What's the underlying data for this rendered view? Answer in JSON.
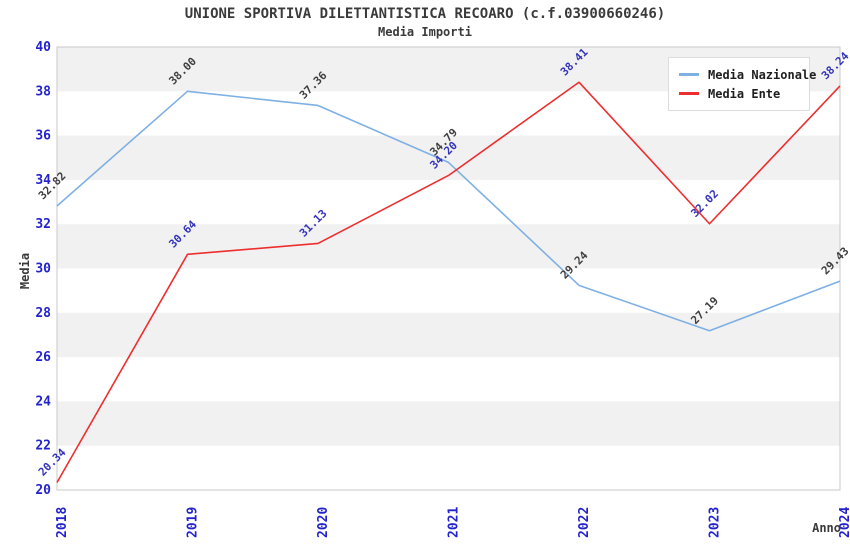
{
  "title": "UNIONE SPORTIVA DILETTANTISTICA RECOARO (c.f.03900660246)",
  "subtitle": "Media Importi",
  "chart_data": {
    "type": "line",
    "x": [
      2018,
      2019,
      2020,
      2021,
      2022,
      2023,
      2024
    ],
    "xlabel": "Anno",
    "ylabel": "Media",
    "ylim": [
      20,
      40
    ],
    "ytick_step": 2,
    "grid": "alternating-horizontal-bands",
    "legend_position": "top-right",
    "series": [
      {
        "name": "Media Nazionale",
        "color": "#7fb0e4",
        "label_color": "#3f3f3f",
        "values": [
          32.82,
          38.0,
          37.36,
          34.79,
          29.24,
          27.19,
          29.43
        ]
      },
      {
        "name": "Media Ente",
        "color": "#ee2e2e",
        "label_color": "#3434bb",
        "values": [
          20.34,
          30.64,
          31.13,
          34.2,
          38.41,
          32.02,
          38.24
        ]
      }
    ],
    "colors": {
      "tick_label_color": "#2323cd",
      "text_color": "#3a3a3a",
      "band_fill": "#f1f1f1",
      "plot_border": "#c9c9c9",
      "plot_background": "#ffffff"
    }
  }
}
